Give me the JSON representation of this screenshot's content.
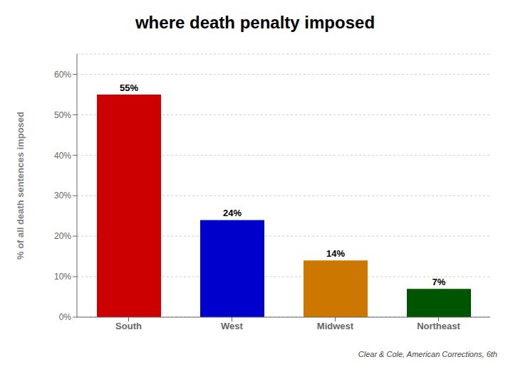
{
  "chart_data": {
    "type": "bar",
    "title": "where death penalty imposed",
    "ylabel": "% of all death sentences imposed",
    "categories": [
      "South",
      "West",
      "Midwest",
      "Northeast"
    ],
    "values": [
      55,
      24,
      14,
      7
    ],
    "value_labels": [
      "55%",
      "24%",
      "14%",
      "7%"
    ],
    "colors": [
      "#cc0000",
      "#0000cc",
      "#cc7700",
      "#005500"
    ],
    "ylim": [
      0,
      65
    ],
    "yticks": [
      {
        "value": 0,
        "label": "0%"
      },
      {
        "value": 10,
        "label": "10%"
      },
      {
        "value": 20,
        "label": "20%"
      },
      {
        "value": 30,
        "label": "30%"
      },
      {
        "value": 40,
        "label": "40%"
      },
      {
        "value": 50,
        "label": "50%"
      },
      {
        "value": 60,
        "label": "60%"
      }
    ],
    "grid": true,
    "data_labels": true,
    "annotations": [
      "Clear & Cole, American Corrections, 6th"
    ]
  }
}
